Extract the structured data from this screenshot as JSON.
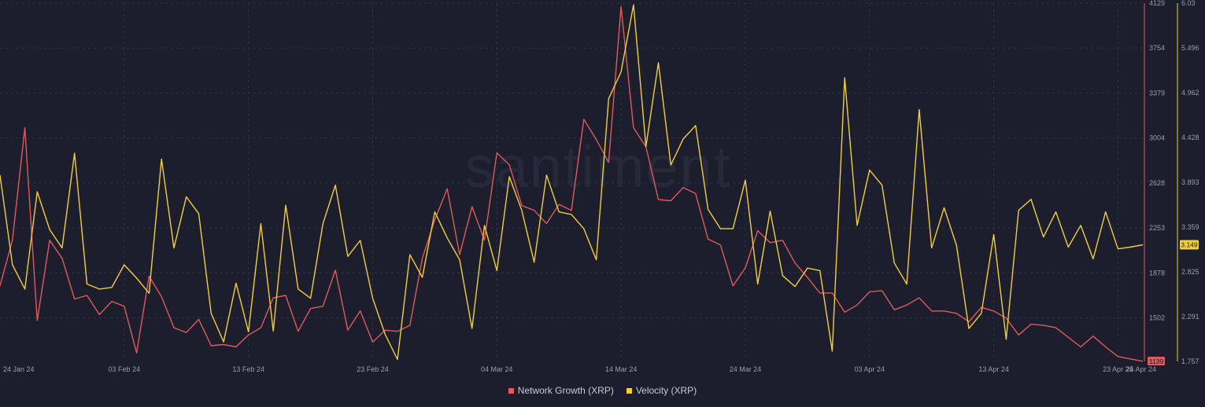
{
  "chart_data": {
    "type": "line",
    "watermark": "santiment",
    "x_ticks": [
      "24 Jan 24",
      "03 Feb 24",
      "13 Feb 24",
      "23 Feb 24",
      "04 Mar 24",
      "14 Mar 24",
      "24 Mar 24",
      "03 Apr 24",
      "13 Apr 24",
      "23 Apr 24",
      "25 Apr 24"
    ],
    "x_range": [
      "2024-01-24",
      "2024-04-25"
    ],
    "left_axis": {
      "series": "Network Growth (XRP)",
      "ticks": [
        "4129",
        "3754",
        "3379",
        "3004",
        "2628",
        "2253",
        "1878",
        "1502",
        "1139"
      ],
      "ylim": [
        1139,
        4129
      ],
      "current_value": "1139"
    },
    "right_axis": {
      "series": "Velocity (XRP)",
      "ticks": [
        "6.03",
        "5.496",
        "4.962",
        "4.428",
        "3.893",
        "3.359",
        "2.825",
        "2.291",
        "1.757"
      ],
      "ylim": [
        1.757,
        6.03
      ],
      "current_value": "3.149"
    },
    "legend_position": "bottom-center",
    "grid": true,
    "series": [
      {
        "name": "Network Growth (XRP)",
        "color": "#e05a5a",
        "axis": "left",
        "x": [
          "2024-01-24",
          "2024-01-25",
          "2024-01-26",
          "2024-01-27",
          "2024-01-28",
          "2024-01-29",
          "2024-01-30",
          "2024-01-31",
          "2024-02-01",
          "2024-02-02",
          "2024-02-03",
          "2024-02-04",
          "2024-02-05",
          "2024-02-06",
          "2024-02-07",
          "2024-02-08",
          "2024-02-09",
          "2024-02-10",
          "2024-02-11",
          "2024-02-12",
          "2024-02-13",
          "2024-02-14",
          "2024-02-15",
          "2024-02-16",
          "2024-02-17",
          "2024-02-18",
          "2024-02-19",
          "2024-02-20",
          "2024-02-21",
          "2024-02-22",
          "2024-02-23",
          "2024-02-24",
          "2024-02-25",
          "2024-02-26",
          "2024-02-27",
          "2024-02-28",
          "2024-02-29",
          "2024-03-01",
          "2024-03-02",
          "2024-03-03",
          "2024-03-04",
          "2024-03-05",
          "2024-03-06",
          "2024-03-07",
          "2024-03-08",
          "2024-03-09",
          "2024-03-10",
          "2024-03-11",
          "2024-03-12",
          "2024-03-13",
          "2024-03-14",
          "2024-03-15",
          "2024-03-16",
          "2024-03-17",
          "2024-03-18",
          "2024-03-19",
          "2024-03-20",
          "2024-03-21",
          "2024-03-22",
          "2024-03-23",
          "2024-03-24",
          "2024-03-25",
          "2024-03-26",
          "2024-03-27",
          "2024-03-28",
          "2024-03-29",
          "2024-03-30",
          "2024-03-31",
          "2024-04-01",
          "2024-04-02",
          "2024-04-03",
          "2024-04-04",
          "2024-04-05",
          "2024-04-06",
          "2024-04-07",
          "2024-04-08",
          "2024-04-09",
          "2024-04-10",
          "2024-04-11",
          "2024-04-12",
          "2024-04-13",
          "2024-04-14",
          "2024-04-15",
          "2024-04-16",
          "2024-04-17",
          "2024-04-18",
          "2024-04-19",
          "2024-04-20",
          "2024-04-21",
          "2024-04-22",
          "2024-04-23",
          "2024-04-24",
          "2024-04-25"
        ],
        "values": [
          1770,
          2150,
          3090,
          1480,
          2150,
          2000,
          1660,
          1690,
          1530,
          1640,
          1600,
          1210,
          1850,
          1680,
          1420,
          1380,
          1490,
          1270,
          1280,
          1260,
          1360,
          1420,
          1670,
          1690,
          1390,
          1580,
          1600,
          1900,
          1400,
          1560,
          1300,
          1400,
          1390,
          1440,
          2000,
          2320,
          2580,
          2030,
          2430,
          2150,
          2880,
          2780,
          2440,
          2400,
          2290,
          2450,
          2400,
          3160,
          2990,
          2800,
          4100,
          3090,
          2930,
          2490,
          2480,
          2590,
          2540,
          2160,
          2110,
          1770,
          1920,
          2230,
          2130,
          2150,
          1960,
          1840,
          1710,
          1710,
          1550,
          1610,
          1720,
          1730,
          1570,
          1610,
          1670,
          1560,
          1560,
          1540,
          1470,
          1590,
          1560,
          1500,
          1360,
          1450,
          1440,
          1420,
          1340,
          1260,
          1350,
          1260,
          1180,
          1160,
          1140
        ]
      },
      {
        "name": "Velocity (XRP)",
        "color": "#f2cd41",
        "axis": "right",
        "x": [
          "2024-01-24",
          "2024-01-25",
          "2024-01-26",
          "2024-01-27",
          "2024-01-28",
          "2024-01-29",
          "2024-01-30",
          "2024-01-31",
          "2024-02-01",
          "2024-02-02",
          "2024-02-03",
          "2024-02-04",
          "2024-02-05",
          "2024-02-06",
          "2024-02-07",
          "2024-02-08",
          "2024-02-09",
          "2024-02-10",
          "2024-02-11",
          "2024-02-12",
          "2024-02-13",
          "2024-02-14",
          "2024-02-15",
          "2024-02-16",
          "2024-02-17",
          "2024-02-18",
          "2024-02-19",
          "2024-02-20",
          "2024-02-21",
          "2024-02-22",
          "2024-02-23",
          "2024-02-24",
          "2024-02-25",
          "2024-02-26",
          "2024-02-27",
          "2024-02-28",
          "2024-02-29",
          "2024-03-01",
          "2024-03-02",
          "2024-03-03",
          "2024-03-04",
          "2024-03-05",
          "2024-03-06",
          "2024-03-07",
          "2024-03-08",
          "2024-03-09",
          "2024-03-10",
          "2024-03-11",
          "2024-03-12",
          "2024-03-13",
          "2024-03-14",
          "2024-03-15",
          "2024-03-16",
          "2024-03-17",
          "2024-03-18",
          "2024-03-19",
          "2024-03-20",
          "2024-03-21",
          "2024-03-22",
          "2024-03-23",
          "2024-03-24",
          "2024-03-25",
          "2024-03-26",
          "2024-03-27",
          "2024-03-28",
          "2024-03-29",
          "2024-03-30",
          "2024-03-31",
          "2024-04-01",
          "2024-04-02",
          "2024-04-03",
          "2024-04-04",
          "2024-04-05",
          "2024-04-06",
          "2024-04-07",
          "2024-04-08",
          "2024-04-09",
          "2024-04-10",
          "2024-04-11",
          "2024-04-12",
          "2024-04-13",
          "2024-04-14",
          "2024-04-15",
          "2024-04-16",
          "2024-04-17",
          "2024-04-18",
          "2024-04-19",
          "2024-04-20",
          "2024-04-21",
          "2024-04-22",
          "2024-04-23",
          "2024-04-24",
          "2024-04-25"
        ],
        "values": [
          3.98,
          2.91,
          2.62,
          3.78,
          3.33,
          3.11,
          4.24,
          2.68,
          2.62,
          2.64,
          2.91,
          2.75,
          2.57,
          4.17,
          3.11,
          3.72,
          3.52,
          2.33,
          1.99,
          2.69,
          2.11,
          3.4,
          2.12,
          3.62,
          2.62,
          2.51,
          3.4,
          3.86,
          3.01,
          3.2,
          2.51,
          2.08,
          1.78,
          3.03,
          2.76,
          3.54,
          3.23,
          2.97,
          2.15,
          3.38,
          2.84,
          3.96,
          3.56,
          2.94,
          3.98,
          3.54,
          3.51,
          3.34,
          2.97,
          4.89,
          5.21,
          6.01,
          4.32,
          5.32,
          4.1,
          4.41,
          4.57,
          3.57,
          3.34,
          3.34,
          3.92,
          2.68,
          3.55,
          2.78,
          2.65,
          2.87,
          2.84,
          1.88,
          5.14,
          3.38,
          4.04,
          3.86,
          2.93,
          2.68,
          4.76,
          3.11,
          3.59,
          3.14,
          2.15,
          2.33,
          3.27,
          2.02,
          3.56,
          3.69,
          3.24,
          3.54,
          3.12,
          3.38,
          2.98,
          3.54,
          3.1,
          3.12,
          3.149
        ]
      }
    ],
    "legend": [
      {
        "label": "Network Growth (XRP)",
        "color": "#e05a5a"
      },
      {
        "label": "Velocity (XRP)",
        "color": "#f2cd41"
      }
    ]
  }
}
